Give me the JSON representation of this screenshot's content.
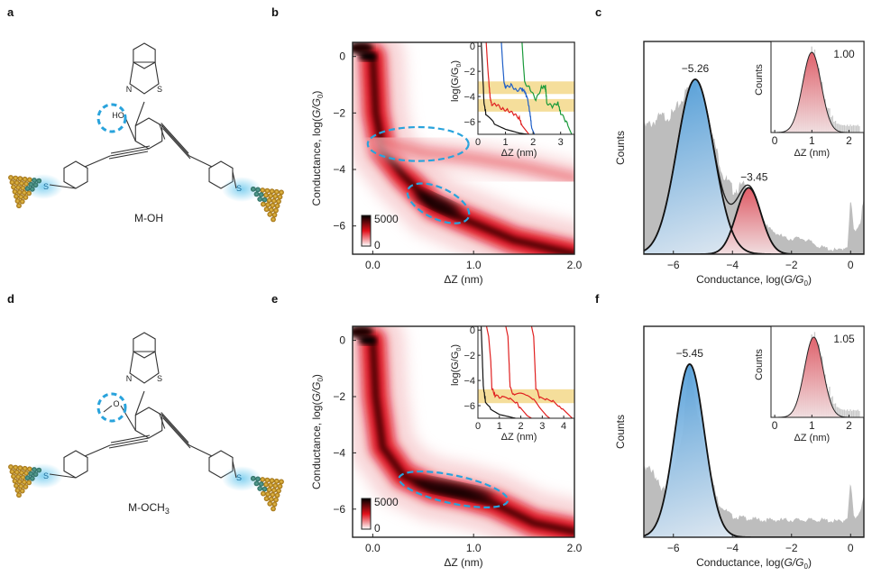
{
  "panels": {
    "a": {
      "label": "a",
      "molecule_name": "M-OH",
      "group_text": "HO",
      "atoms": {
        "N": "N",
        "S": "S",
        "S_left": "S",
        "S_right": "S"
      }
    },
    "d": {
      "label": "d",
      "molecule_name": "M-OCH",
      "molecule_sub": "3",
      "group_text": "O",
      "atoms": {
        "N": "N",
        "S": "S",
        "S_left": "S",
        "S_right": "S"
      }
    },
    "b": {
      "label": "b"
    },
    "c": {
      "label": "c"
    },
    "e": {
      "label": "e"
    },
    "f": {
      "label": "f"
    }
  },
  "colors": {
    "highlight_dash": "#29a3dc",
    "heatmap_high": "#000000",
    "heatmap_mid": "#e0101a",
    "heatmap_low": "#ffffff",
    "gold": "#c99a1e",
    "glow": "#7fd0f0",
    "band": "#f3d88a",
    "trace_black": "#111111",
    "trace_red": "#e02020",
    "trace_blue": "#1f5fc8",
    "trace_green": "#1a9a3a",
    "hist_gray": "#bdbdbd",
    "fit_blue": "#5aa5dc",
    "fit_red": "#e0606a"
  },
  "chart_data": [
    {
      "id": "b",
      "type": "heatmap",
      "title": "",
      "xlabel": "ΔZ (nm)",
      "ylabel_prefix": "Conductance, log(",
      "ylabel_G": "G/G",
      "ylabel_sub": "0",
      "ylabel_suffix": ")",
      "xlim": [
        -0.2,
        2.0
      ],
      "ylim": [
        -7.0,
        0.5
      ],
      "xticks": [
        0.0,
        1.0,
        2.0
      ],
      "xtick_labels": [
        "0.0",
        "1.0",
        "2.0"
      ],
      "yticks": [
        0,
        -2,
        -4,
        -6
      ],
      "ytick_labels": [
        "0",
        "−2",
        "−4",
        "−6"
      ],
      "colorbar": {
        "min": 0,
        "max": 5000,
        "labels": [
          "5000",
          "0"
        ]
      },
      "density_ridges": [
        {
          "name": "main decay",
          "points": [
            [
              0.0,
              0.0
            ],
            [
              0.03,
              -2.0
            ],
            [
              0.1,
              -3.3
            ],
            [
              0.3,
              -4.2
            ],
            [
              0.6,
              -5.3
            ],
            [
              1.0,
              -5.9
            ],
            [
              1.4,
              -6.5
            ],
            [
              2.0,
              -7.0
            ]
          ]
        },
        {
          "name": "upper plateau",
          "points": [
            [
              0.1,
              -3.0
            ],
            [
              0.5,
              -3.4
            ],
            [
              1.0,
              -3.6
            ],
            [
              1.5,
              -3.9
            ],
            [
              2.0,
              -4.3
            ]
          ]
        }
      ],
      "highlight_ellipses": [
        {
          "center": [
            0.45,
            -3.1
          ],
          "rx": 0.5,
          "ry": 0.6
        },
        {
          "center": [
            0.65,
            -5.2
          ],
          "rx": 0.33,
          "ry": 0.55,
          "angle_deg": 25
        }
      ],
      "inset": {
        "type": "line",
        "xlabel": "ΔZ (nm)",
        "ylabel_prefix": "log(",
        "ylabel_G": "G/G",
        "ylabel_sub": "0",
        "ylabel_suffix": ")",
        "xlim": [
          0,
          3.5
        ],
        "ylim": [
          -7.0,
          0.3
        ],
        "xticks": [
          0,
          1,
          2,
          3
        ],
        "xtick_labels": [
          "0",
          "1",
          "2",
          "3"
        ],
        "yticks": [
          0,
          -2,
          -4,
          -6
        ],
        "ytick_labels": [
          "0",
          "−2",
          "−4",
          "−6"
        ],
        "bands": [
          [
            -3.8,
            -2.8
          ],
          [
            -5.2,
            -4.2
          ]
        ],
        "series": [
          {
            "name": "black",
            "color": "#111111",
            "points": [
              [
                0.12,
                0.3
              ],
              [
                0.15,
                -1.0
              ],
              [
                0.22,
                -4.5
              ],
              [
                0.3,
                -5.5
              ],
              [
                0.6,
                -6.2
              ],
              [
                1.0,
                -6.6
              ],
              [
                1.5,
                -6.9
              ],
              [
                1.8,
                -7.0
              ]
            ]
          },
          {
            "name": "red",
            "color": "#e02020",
            "points": [
              [
                0.3,
                0.3
              ],
              [
                0.35,
                -1.5
              ],
              [
                0.4,
                -3.0
              ],
              [
                0.45,
                -4.2
              ],
              [
                0.5,
                -4.6
              ],
              [
                0.7,
                -4.7
              ],
              [
                0.9,
                -5.0
              ],
              [
                1.1,
                -5.1
              ],
              [
                1.3,
                -5.4
              ],
              [
                1.5,
                -5.7
              ],
              [
                1.6,
                -6.3
              ],
              [
                1.85,
                -7.0
              ]
            ]
          },
          {
            "name": "blue",
            "color": "#1f5fc8",
            "points": [
              [
                0.85,
                0.3
              ],
              [
                0.9,
                -1.5
              ],
              [
                0.95,
                -2.9
              ],
              [
                1.0,
                -3.3
              ],
              [
                1.2,
                -3.1
              ],
              [
                1.4,
                -3.5
              ],
              [
                1.6,
                -3.4
              ],
              [
                1.7,
                -3.6
              ],
              [
                1.8,
                -4.2
              ],
              [
                1.9,
                -5.5
              ],
              [
                1.95,
                -6.5
              ],
              [
                2.05,
                -7.0
              ]
            ]
          },
          {
            "name": "green",
            "color": "#1a9a3a",
            "points": [
              [
                1.6,
                0.3
              ],
              [
                1.65,
                -1.5
              ],
              [
                1.7,
                -2.9
              ],
              [
                1.9,
                -3.4
              ],
              [
                2.1,
                -4.3
              ],
              [
                2.3,
                -3.3
              ],
              [
                2.45,
                -3.2
              ],
              [
                2.5,
                -4.5
              ],
              [
                2.7,
                -4.8
              ],
              [
                2.9,
                -4.5
              ],
              [
                3.0,
                -5.3
              ],
              [
                3.2,
                -6.0
              ],
              [
                3.4,
                -7.0
              ]
            ]
          }
        ]
      }
    },
    {
      "id": "c",
      "type": "area",
      "xlabel_prefix": "Conductance, log(",
      "xlabel_G": "G/G",
      "xlabel_sub": "0",
      "xlabel_suffix": ")",
      "ylabel": "Counts",
      "xlim": [
        -7.0,
        0.45
      ],
      "xticks": [
        -6,
        -4,
        -2,
        0
      ],
      "xtick_labels": [
        "−6",
        "−4",
        "−2",
        "0"
      ],
      "gaussian_fits": [
        {
          "center": -5.26,
          "sigma": 0.62,
          "amplitude": 1.0,
          "color": "blue",
          "label": "−5.26"
        },
        {
          "center": -3.45,
          "sigma": 0.42,
          "amplitude": 0.38,
          "color": "red",
          "label": "−3.45"
        }
      ],
      "histogram_profile": [
        [
          -7.0,
          0.72
        ],
        [
          -6.5,
          0.78
        ],
        [
          -6.0,
          0.8
        ],
        [
          -5.5,
          0.95
        ],
        [
          -5.26,
          1.0
        ],
        [
          -4.8,
          0.75
        ],
        [
          -4.3,
          0.45
        ],
        [
          -4.0,
          0.37
        ],
        [
          -3.6,
          0.39
        ],
        [
          -3.2,
          0.3
        ],
        [
          -2.8,
          0.15
        ],
        [
          -2.2,
          0.09
        ],
        [
          -1.6,
          0.09
        ],
        [
          -1.0,
          0.04
        ],
        [
          -0.4,
          0.02
        ],
        [
          -0.1,
          0.05
        ],
        [
          0.0,
          0.32
        ],
        [
          0.12,
          0.12
        ],
        [
          0.3,
          0.18
        ],
        [
          0.45,
          0.3
        ]
      ],
      "inset": {
        "type": "area",
        "xlabel": "ΔZ (nm)",
        "ylabel": "Counts",
        "xlim": [
          -0.1,
          2.4
        ],
        "xticks": [
          0,
          1,
          2
        ],
        "xtick_labels": [
          "0",
          "1",
          "2"
        ],
        "peak": {
          "center": 1.0,
          "sigma": 0.25,
          "label": "1.00"
        }
      }
    },
    {
      "id": "e",
      "type": "heatmap",
      "xlabel": "ΔZ (nm)",
      "ylabel_prefix": "Conductance, log(",
      "ylabel_G": "G/G",
      "ylabel_sub": "0",
      "ylabel_suffix": ")",
      "xlim": [
        -0.2,
        2.0
      ],
      "ylim": [
        -7.0,
        0.5
      ],
      "xticks": [
        0.0,
        1.0,
        2.0
      ],
      "xtick_labels": [
        "0.0",
        "1.0",
        "2.0"
      ],
      "yticks": [
        0,
        -2,
        -4,
        -6
      ],
      "ytick_labels": [
        "0",
        "−2",
        "−4",
        "−6"
      ],
      "colorbar": {
        "min": 0,
        "max": 5000,
        "labels": [
          "5000",
          "0"
        ]
      },
      "density_ridges": [
        {
          "name": "main decay",
          "points": [
            [
              0.0,
              0.0
            ],
            [
              0.03,
              -2.0
            ],
            [
              0.1,
              -3.8
            ],
            [
              0.3,
              -4.8
            ],
            [
              0.6,
              -5.3
            ],
            [
              0.9,
              -5.5
            ],
            [
              1.2,
              -5.8
            ],
            [
              1.6,
              -6.5
            ],
            [
              2.0,
              -6.8
            ]
          ]
        }
      ],
      "highlight_ellipses": [
        {
          "center": [
            0.8,
            -5.3
          ],
          "rx": 0.55,
          "ry": 0.5,
          "angle_deg": 12
        }
      ],
      "inset": {
        "type": "line",
        "xlabel": "ΔZ (nm)",
        "ylabel_prefix": "log(",
        "ylabel_G": "G/G",
        "ylabel_sub": "0",
        "ylabel_suffix": ")",
        "xlim": [
          0,
          4.5
        ],
        "ylim": [
          -7.0,
          0.3
        ],
        "xticks": [
          0,
          1,
          2,
          3,
          4
        ],
        "xtick_labels": [
          "0",
          "1",
          "2",
          "3",
          "4"
        ],
        "yticks": [
          0,
          -2,
          -4,
          -6
        ],
        "ytick_labels": [
          "0",
          "−2",
          "−4",
          "−6"
        ],
        "bands": [
          [
            -5.8,
            -4.7
          ]
        ],
        "series": [
          {
            "name": "black",
            "color": "#111111",
            "points": [
              [
                0.15,
                0.3
              ],
              [
                0.2,
                -2.0
              ],
              [
                0.25,
                -4.5
              ],
              [
                0.35,
                -5.6
              ],
              [
                0.6,
                -6.3
              ],
              [
                1.0,
                -6.7
              ],
              [
                1.5,
                -6.9
              ],
              [
                1.75,
                -7.0
              ]
            ]
          },
          {
            "name": "red 1",
            "color": "#e02020",
            "points": [
              [
                0.4,
                0.3
              ],
              [
                0.5,
                -0.5
              ],
              [
                0.6,
                -2.5
              ],
              [
                0.65,
                -4.6
              ],
              [
                0.8,
                -5.2
              ],
              [
                1.2,
                -5.4
              ],
              [
                1.5,
                -5.5
              ],
              [
                1.8,
                -5.8
              ],
              [
                2.0,
                -6.2
              ],
              [
                2.3,
                -6.8
              ],
              [
                2.5,
                -7.0
              ]
            ]
          },
          {
            "name": "red 2",
            "color": "#e02020",
            "points": [
              [
                1.3,
                0.3
              ],
              [
                1.4,
                -0.5
              ],
              [
                1.45,
                -2.5
              ],
              [
                1.5,
                -4.6
              ],
              [
                1.7,
                -5.2
              ],
              [
                2.0,
                -5.1
              ],
              [
                2.3,
                -5.3
              ],
              [
                2.6,
                -5.6
              ],
              [
                2.9,
                -6.2
              ],
              [
                3.2,
                -6.8
              ],
              [
                3.35,
                -7.0
              ]
            ]
          },
          {
            "name": "red 3",
            "color": "#e02020",
            "points": [
              [
                2.5,
                0.3
              ],
              [
                2.6,
                -0.5
              ],
              [
                2.65,
                -2.5
              ],
              [
                2.7,
                -4.6
              ],
              [
                2.9,
                -5.4
              ],
              [
                3.2,
                -5.5
              ],
              [
                3.5,
                -5.6
              ],
              [
                3.8,
                -6.0
              ],
              [
                4.1,
                -6.5
              ],
              [
                4.4,
                -7.0
              ]
            ]
          }
        ]
      }
    },
    {
      "id": "f",
      "type": "area",
      "xlabel_prefix": "Conductance, log(",
      "xlabel_G": "G/G",
      "xlabel_sub": "0",
      "xlabel_suffix": ")",
      "ylabel": "Counts",
      "xlim": [
        -7.0,
        0.45
      ],
      "xticks": [
        -6,
        -4,
        -2,
        0
      ],
      "xtick_labels": [
        "−6",
        "−4",
        "−2",
        "0"
      ],
      "gaussian_fits": [
        {
          "center": -5.45,
          "sigma": 0.5,
          "amplitude": 1.0,
          "color": "blue",
          "label": "−5.45"
        }
      ],
      "histogram_profile": [
        [
          -7.0,
          0.38
        ],
        [
          -6.7,
          0.4
        ],
        [
          -6.4,
          0.25
        ],
        [
          -6.0,
          0.38
        ],
        [
          -5.7,
          0.6
        ],
        [
          -5.45,
          1.0
        ],
        [
          -5.0,
          0.55
        ],
        [
          -4.5,
          0.2
        ],
        [
          -4.0,
          0.12
        ],
        [
          -3.0,
          0.1
        ],
        [
          -2.0,
          0.1
        ],
        [
          -1.0,
          0.1
        ],
        [
          -0.3,
          0.09
        ],
        [
          -0.1,
          0.12
        ],
        [
          0.0,
          0.32
        ],
        [
          0.12,
          0.1
        ],
        [
          0.3,
          0.15
        ],
        [
          0.45,
          0.22
        ]
      ],
      "inset": {
        "type": "area",
        "xlabel": "ΔZ (nm)",
        "ylabel": "Counts",
        "xlim": [
          -0.1,
          2.4
        ],
        "xticks": [
          0,
          1,
          2
        ],
        "xtick_labels": [
          "0",
          "1",
          "2"
        ],
        "peak": {
          "center": 1.05,
          "sigma": 0.25,
          "label": "1.05"
        }
      }
    }
  ]
}
